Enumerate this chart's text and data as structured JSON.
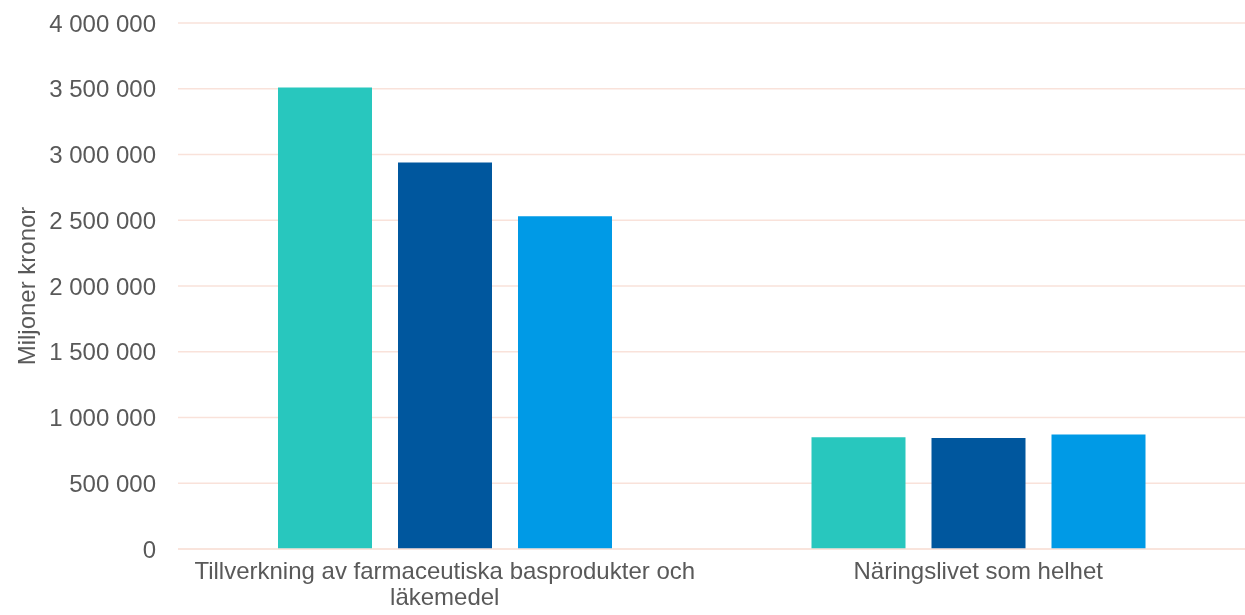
{
  "chart_data": {
    "type": "bar",
    "ylabel": "Miljoner kronor",
    "categories": [
      "Tillverkning av farmaceutiska basprodukter och läkemedel",
      "Näringslivet som helhet"
    ],
    "series": [
      {
        "color": "#28c7be",
        "values": [
          3510000,
          850000
        ]
      },
      {
        "color": "#00579e",
        "values": [
          2940000,
          845000
        ]
      },
      {
        "color": "#009ae6",
        "values": [
          2530000,
          870000
        ]
      }
    ],
    "ylim": [
      0,
      4000000
    ],
    "yticks": [
      {
        "value": 0,
        "label": "0"
      },
      {
        "value": 500000,
        "label": "500 000"
      },
      {
        "value": 1000000,
        "label": "1 000 000"
      },
      {
        "value": 1500000,
        "label": "1 500 000"
      },
      {
        "value": 2000000,
        "label": "2 000 000"
      },
      {
        "value": 2500000,
        "label": "2 500 000"
      },
      {
        "value": 3000000,
        "label": "3 000 000"
      },
      {
        "value": 3500000,
        "label": "3 500 000"
      },
      {
        "value": 4000000,
        "label": "4 000 000"
      }
    ],
    "grid": "y"
  }
}
